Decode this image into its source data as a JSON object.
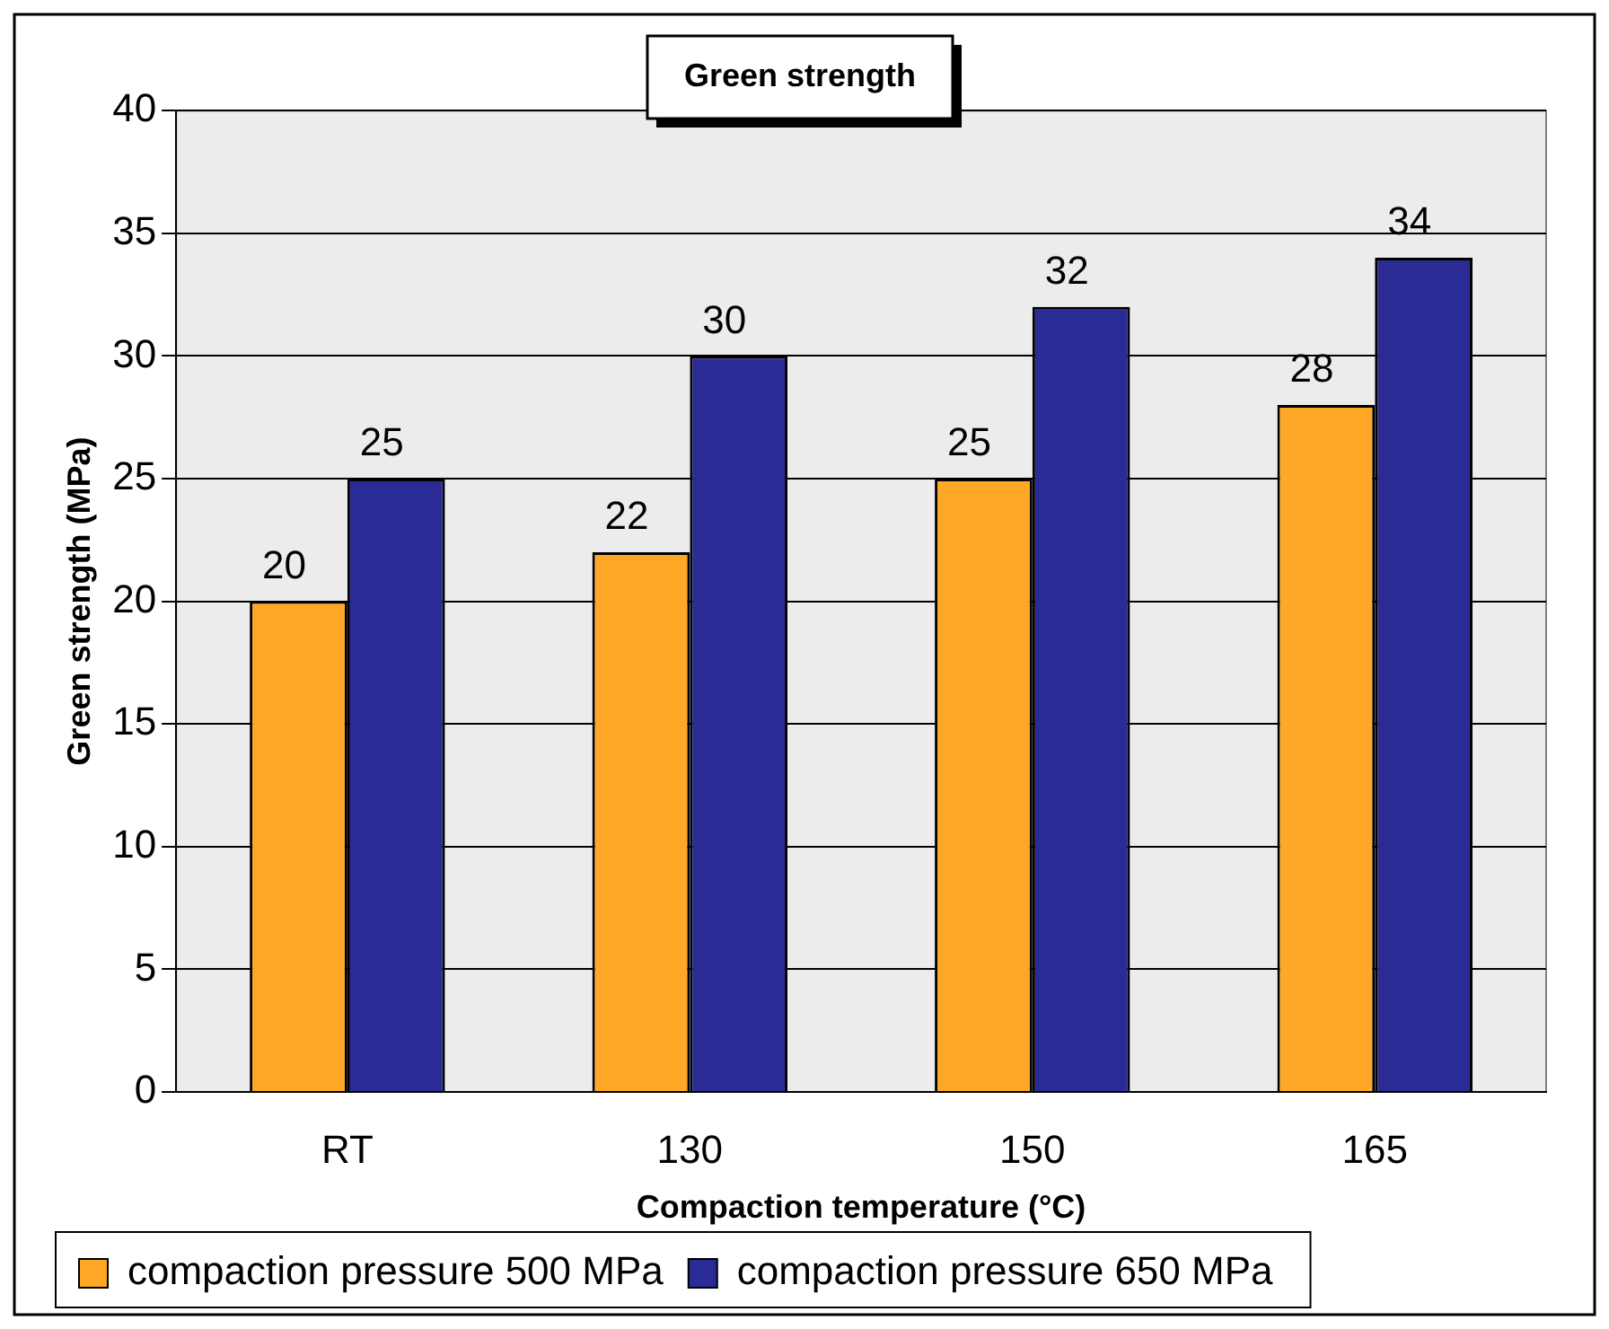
{
  "chart_data": {
    "type": "bar",
    "title": "Green strength",
    "xlabel": "Compaction temperature (°C)",
    "ylabel": "Green strength (MPa)",
    "categories": [
      "RT",
      "130",
      "150",
      "165"
    ],
    "series": [
      {
        "name": "compaction pressure 500 MPa",
        "color": "#ffa726",
        "values": [
          20,
          22,
          25,
          28
        ]
      },
      {
        "name": "compaction pressure 650 MPa",
        "color": "#2b2b96",
        "values": [
          25,
          30,
          32,
          34
        ]
      }
    ],
    "ylim": [
      0,
      40
    ],
    "yticks": [
      0,
      5,
      10,
      15,
      20,
      25,
      30,
      35,
      40
    ],
    "grid": "y",
    "legend": "bottom left",
    "data_labels": true
  }
}
